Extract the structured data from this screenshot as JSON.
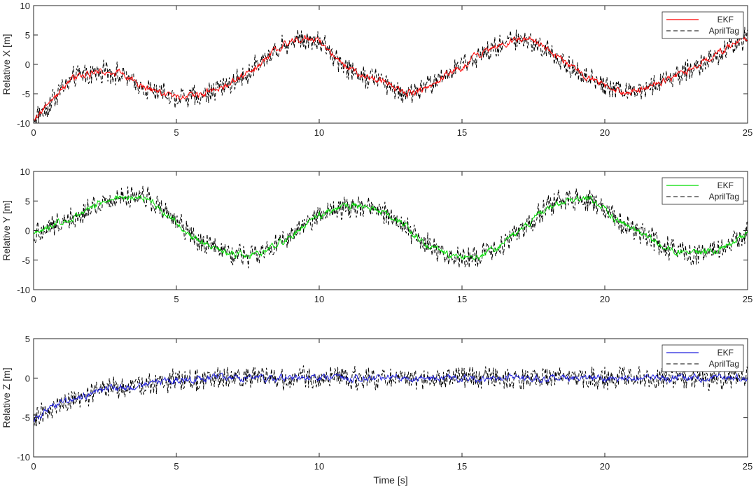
{
  "chart_data": [
    {
      "type": "line",
      "ylabel": "Relative X [m]",
      "xlabel": "",
      "xlim": [
        0,
        25
      ],
      "ylim": [
        -10,
        10
      ],
      "xticks": [
        "0",
        "5",
        "10",
        "15",
        "20",
        "25"
      ],
      "yticks": [
        "10",
        "5",
        "0",
        "-5",
        "-10"
      ],
      "legend_position": "top-right",
      "series": [
        {
          "name": "EKF",
          "color": "#ff0000",
          "style": "solid",
          "x": [
            0,
            0.5,
            1,
            1.5,
            2,
            2.5,
            3,
            3.5,
            4,
            4.5,
            5,
            5.5,
            6,
            6.5,
            7,
            7.5,
            8,
            8.5,
            9,
            9.5,
            10,
            10.5,
            11,
            11.5,
            12,
            12.5,
            13,
            13.5,
            14,
            14.5,
            15,
            15.5,
            16,
            16.5,
            17,
            17.5,
            18,
            18.5,
            19,
            19.5,
            20,
            20.5,
            21,
            21.5,
            22,
            22.5,
            23,
            23.5,
            24,
            24.5,
            25
          ],
          "values": [
            -9.5,
            -7,
            -4,
            -2,
            -1.5,
            -1.2,
            -1.5,
            -3,
            -4.2,
            -5,
            -5.5,
            -5.5,
            -5,
            -4,
            -3,
            -1.5,
            0.5,
            2.5,
            4,
            4.5,
            4,
            1.5,
            -0.5,
            -2,
            -2.5,
            -3.5,
            -5,
            -4.5,
            -3,
            -1.5,
            -0.5,
            1.5,
            2.5,
            3.5,
            4.5,
            4,
            2.5,
            0.5,
            -1,
            -2.5,
            -3.5,
            -4.5,
            -4.5,
            -4,
            -3,
            -2,
            -1,
            0.5,
            2,
            3.5,
            4.5
          ]
        },
        {
          "name": "AprilTag",
          "color": "#000000",
          "style": "dashed",
          "noise": 1.6
        }
      ]
    },
    {
      "type": "line",
      "ylabel": "Relative Y [m]",
      "xlabel": "",
      "xlim": [
        0,
        25
      ],
      "ylim": [
        -10,
        10
      ],
      "xticks": [
        "0",
        "5",
        "10",
        "15",
        "20",
        "25"
      ],
      "yticks": [
        "10",
        "5",
        "0",
        "-5",
        "-10"
      ],
      "legend_position": "top-right",
      "series": [
        {
          "name": "EKF",
          "color": "#00dd00",
          "style": "solid",
          "x": [
            0,
            0.5,
            1,
            1.5,
            2,
            2.5,
            3,
            3.5,
            4,
            4.5,
            5,
            5.5,
            6,
            6.5,
            7,
            7.5,
            8,
            8.5,
            9,
            9.5,
            10,
            10.5,
            11,
            11.5,
            12,
            12.5,
            13,
            13.5,
            14,
            14.5,
            15,
            15.5,
            16,
            16.5,
            17,
            17.5,
            18,
            18.5,
            19,
            19.5,
            20,
            20.5,
            21,
            21.5,
            22,
            22.5,
            23,
            23.5,
            24,
            24.5,
            25
          ],
          "values": [
            -0.5,
            0.5,
            1.5,
            2.5,
            4,
            5,
            5.5,
            5.8,
            5.5,
            3.5,
            1.5,
            -1,
            -2.5,
            -3.5,
            -4,
            -4.2,
            -3.8,
            -2.5,
            -1,
            1,
            2.5,
            3.8,
            4.2,
            4,
            3.5,
            2.5,
            1,
            -1.5,
            -3,
            -4,
            -4.8,
            -4.5,
            -3.5,
            -2,
            0,
            2,
            4,
            5,
            5.5,
            5,
            3.5,
            1.5,
            0,
            -1,
            -2.5,
            -3.5,
            -4,
            -3.8,
            -3,
            -2,
            0
          ]
        },
        {
          "name": "AprilTag",
          "color": "#000000",
          "style": "dashed",
          "noise": 1.6
        }
      ]
    },
    {
      "type": "line",
      "ylabel": "Relative Z [m]",
      "xlabel": "Time [s]",
      "xlim": [
        0,
        25
      ],
      "ylim": [
        -10,
        5
      ],
      "xticks": [
        "0",
        "5",
        "10",
        "15",
        "20",
        "25"
      ],
      "yticks": [
        "5",
        "0",
        "-5",
        "-10"
      ],
      "legend_position": "top-right",
      "series": [
        {
          "name": "EKF",
          "color": "#2222dd",
          "style": "solid",
          "x": [
            0,
            0.5,
            1,
            1.5,
            2,
            2.5,
            3,
            3.5,
            4,
            4.5,
            5,
            5.5,
            6,
            6.5,
            7,
            7.5,
            8,
            8.5,
            9,
            9.5,
            10,
            10.5,
            11,
            11.5,
            12,
            12.5,
            13,
            13.5,
            14,
            14.5,
            15,
            15.5,
            16,
            16.5,
            17,
            17.5,
            18,
            18.5,
            19,
            19.5,
            20,
            20.5,
            21,
            21.5,
            22,
            22.5,
            23,
            23.5,
            24,
            24.5,
            25
          ],
          "values": [
            -5.5,
            -4,
            -3,
            -2.5,
            -2,
            -1.5,
            -1.2,
            -1,
            -0.8,
            -0.5,
            -0.3,
            -0.2,
            -0.1,
            0,
            0,
            0,
            0,
            0,
            0,
            0,
            0,
            0,
            0,
            0,
            0,
            0,
            0,
            0,
            0,
            0,
            0,
            0,
            0,
            0,
            0,
            0,
            0,
            0,
            0,
            0,
            0,
            0,
            0,
            0,
            0,
            0,
            0,
            0,
            0,
            0,
            0
          ]
        },
        {
          "name": "AprilTag",
          "color": "#000000",
          "style": "dashed",
          "noise": 1.2
        }
      ]
    }
  ]
}
